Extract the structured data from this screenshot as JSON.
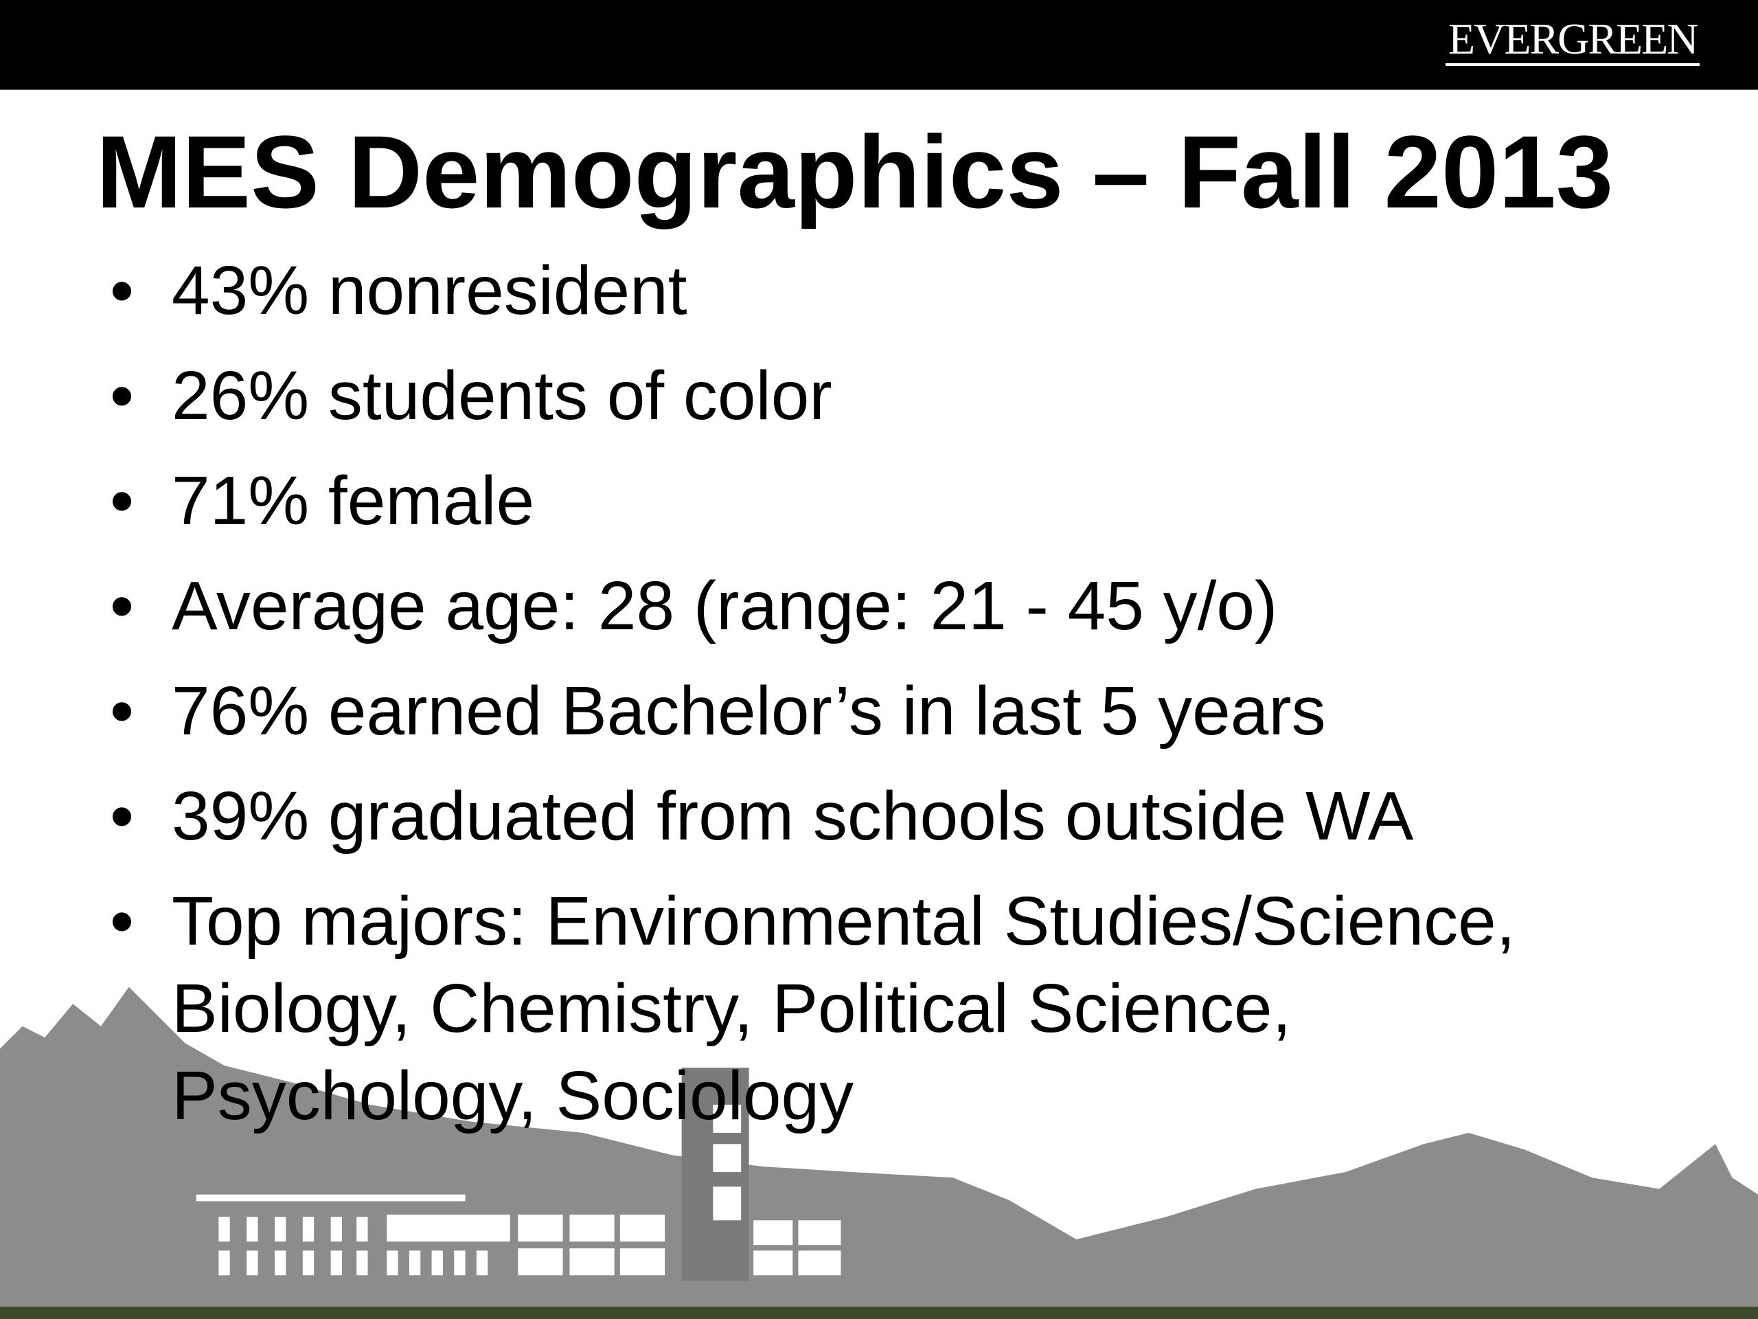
{
  "header": {
    "logo": "EVERGREEN"
  },
  "title": "MES Demographics – Fall 2013",
  "bullets": [
    "43% nonresident",
    "26% students of color",
    "71% female",
    "Average age: 28 (range: 21 - 45 y/o)",
    "76% earned Bachelor’s in last 5 years",
    "39% graduated from schools outside WA",
    "Top majors: Environmental Studies/Science, Biology, Chemistry, Political Science, Psychology, Sociology"
  ]
}
